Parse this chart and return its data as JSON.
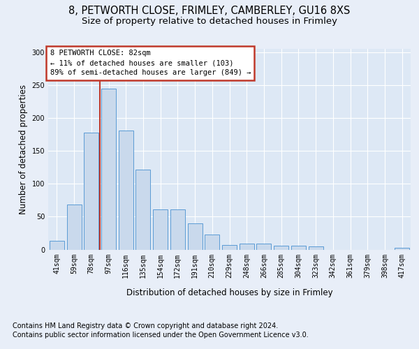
{
  "title1": "8, PETWORTH CLOSE, FRIMLEY, CAMBERLEY, GU16 8XS",
  "title2": "Size of property relative to detached houses in Frimley",
  "xlabel": "Distribution of detached houses by size in Frimley",
  "ylabel": "Number of detached properties",
  "categories": [
    "41sqm",
    "59sqm",
    "78sqm",
    "97sqm",
    "116sqm",
    "135sqm",
    "154sqm",
    "172sqm",
    "191sqm",
    "210sqm",
    "229sqm",
    "248sqm",
    "266sqm",
    "285sqm",
    "304sqm",
    "323sqm",
    "342sqm",
    "361sqm",
    "379sqm",
    "398sqm",
    "417sqm"
  ],
  "values": [
    13,
    68,
    178,
    245,
    181,
    122,
    61,
    61,
    40,
    23,
    7,
    9,
    9,
    6,
    6,
    5,
    0,
    0,
    0,
    0,
    3
  ],
  "bar_color": "#c9d9ec",
  "bar_edge_color": "#5b9bd5",
  "vline_color": "#c0392b",
  "vline_x": 2.5,
  "annotation_text": "8 PETWORTH CLOSE: 82sqm\n← 11% of detached houses are smaller (103)\n89% of semi-detached houses are larger (849) →",
  "annotation_box_color": "#ffffff",
  "annotation_box_edge": "#c0392b",
  "ylim": [
    0,
    305
  ],
  "yticks": [
    0,
    50,
    100,
    150,
    200,
    250,
    300
  ],
  "footer1": "Contains HM Land Registry data © Crown copyright and database right 2024.",
  "footer2": "Contains public sector information licensed under the Open Government Licence v3.0.",
  "bg_color": "#dde8f5",
  "fig_bg_color": "#e8eef8",
  "title_fontsize": 10.5,
  "subtitle_fontsize": 9.5,
  "axis_label_fontsize": 8.5,
  "tick_fontsize": 7,
  "footer_fontsize": 7,
  "annotation_fontsize": 7.5
}
